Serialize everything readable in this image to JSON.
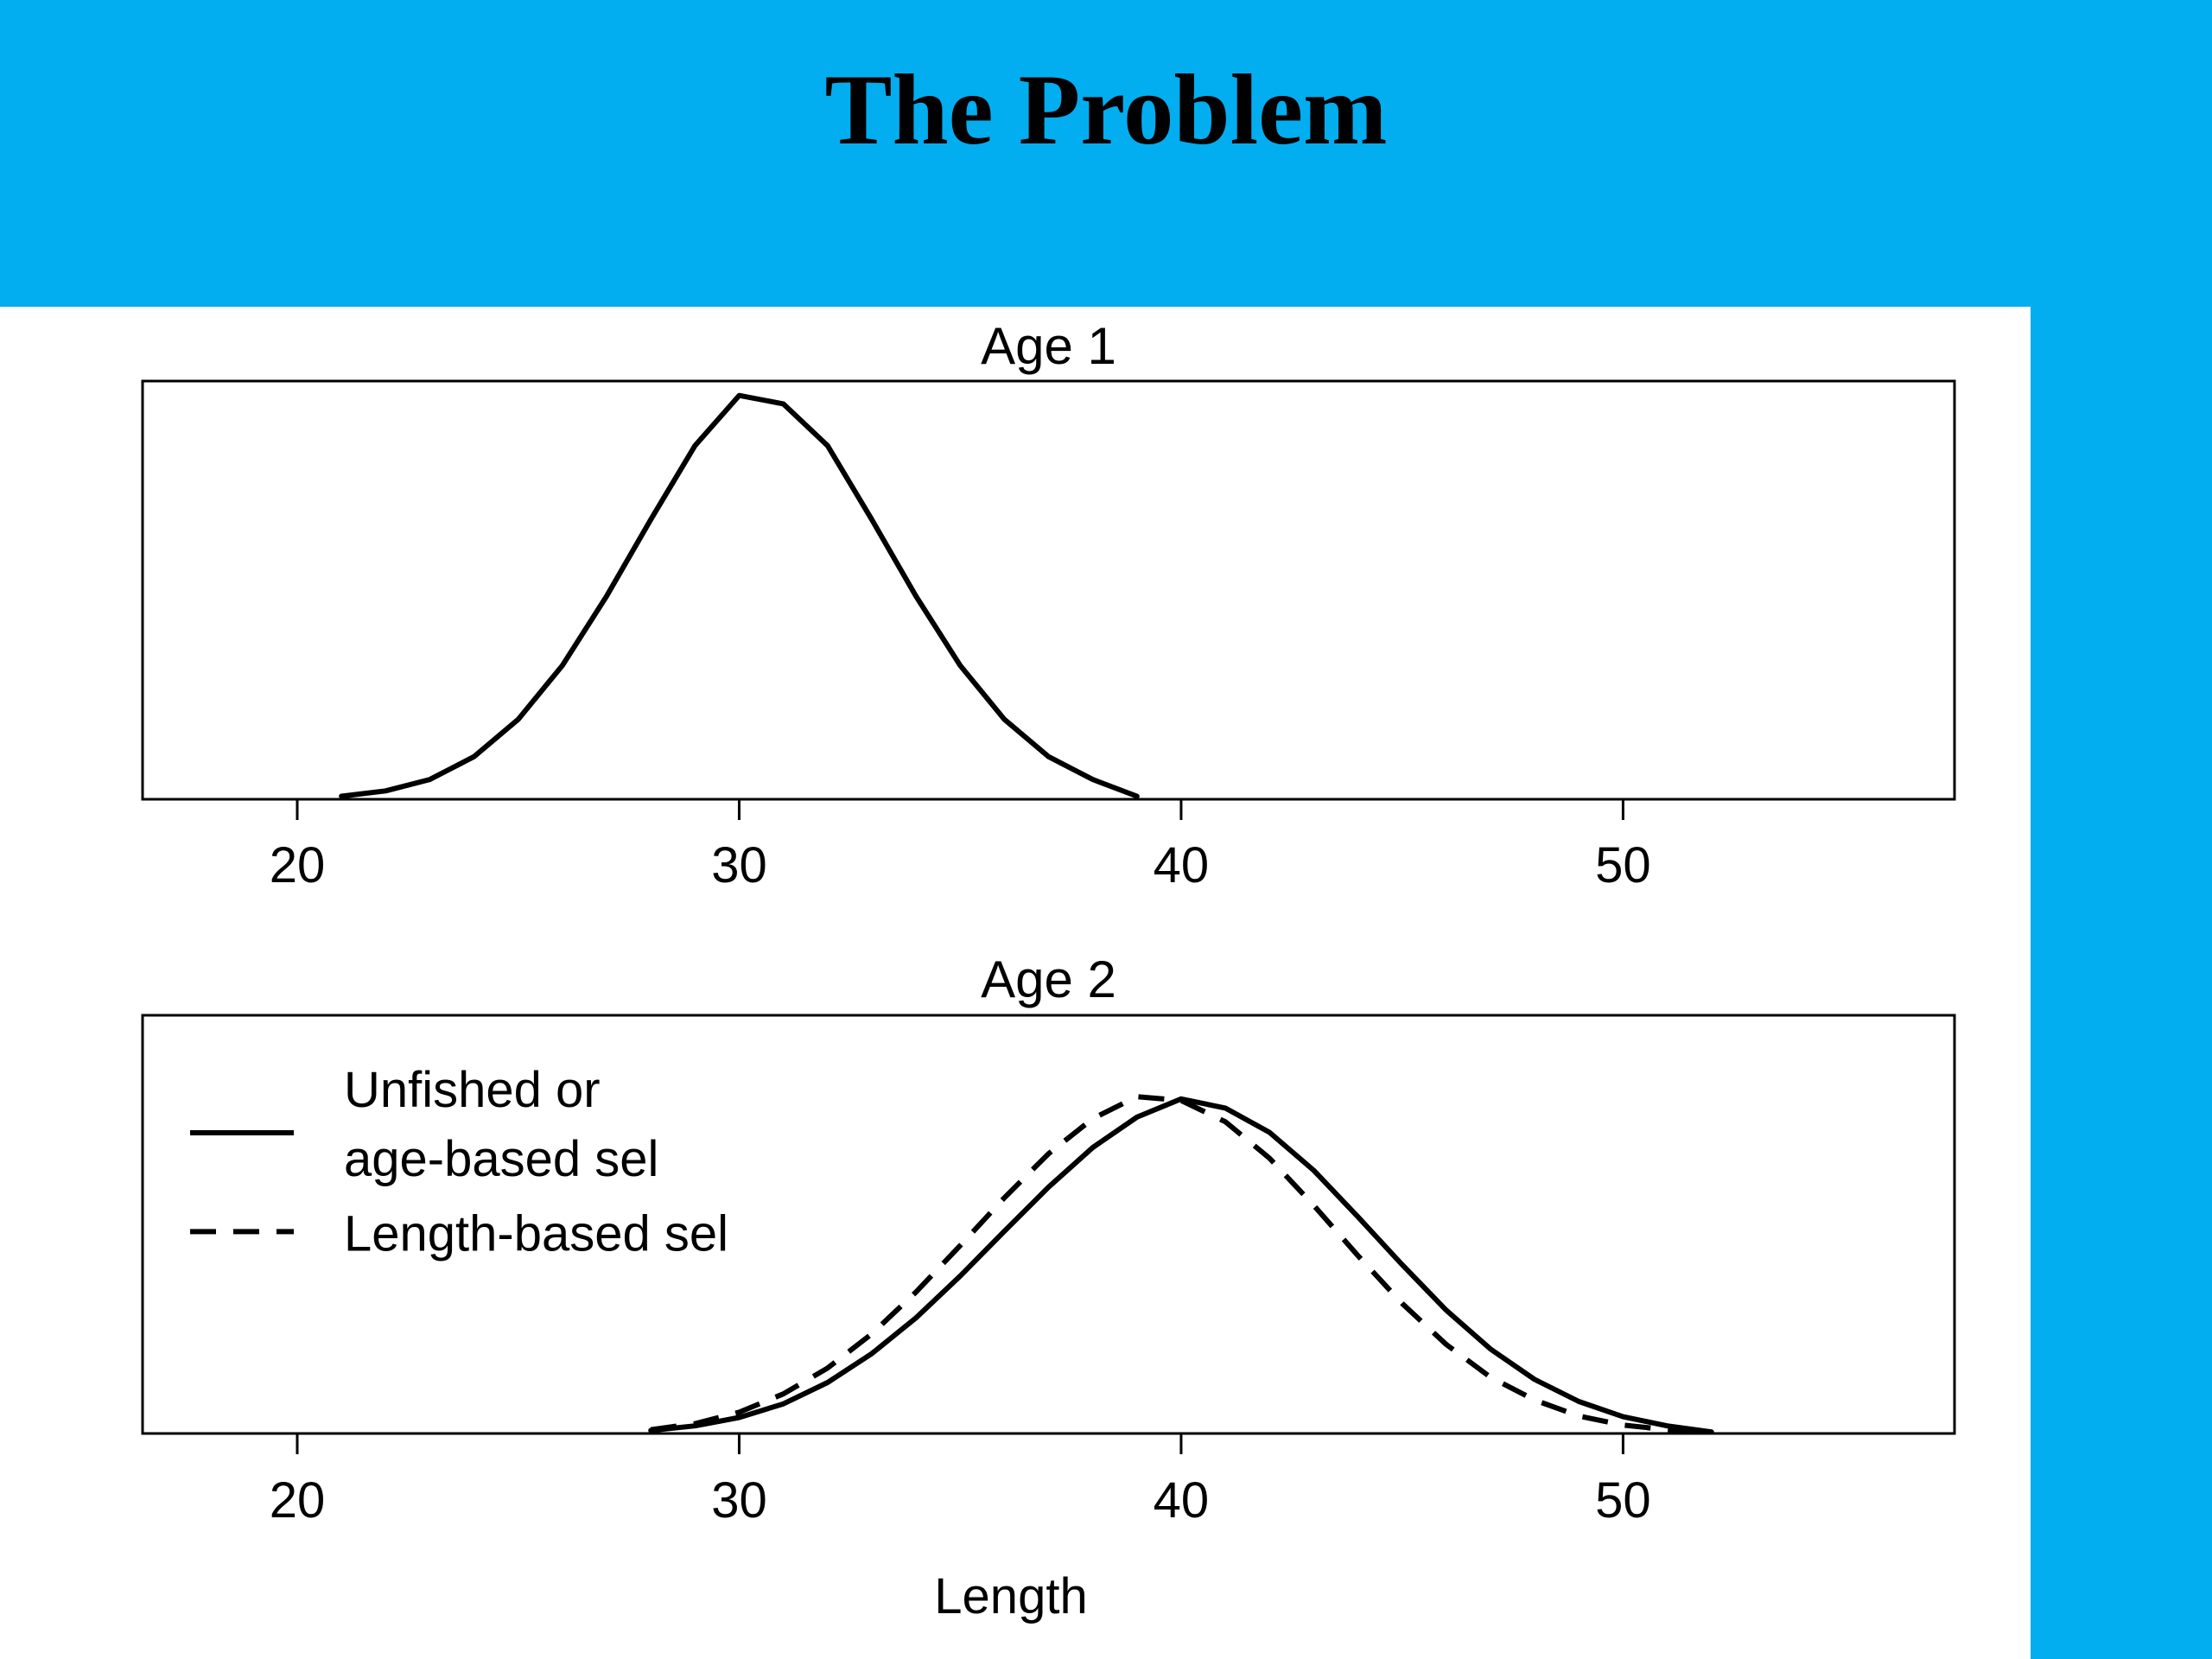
{
  "slide": {
    "title": "The Problem",
    "background_color": "#02AEEF",
    "panel_color": "#FFFFFF"
  },
  "chart_data": [
    {
      "type": "line",
      "title": "Age 1",
      "xlabel": "",
      "ylabel": "",
      "xlim": [
        16.5,
        57.5
      ],
      "x_ticks": [
        20,
        30,
        40,
        50
      ],
      "grid": false,
      "y_axis_shown": false,
      "series": [
        {
          "line_style": "solid",
          "x": [
            21,
            22,
            23,
            24,
            25,
            26,
            27,
            28,
            29,
            30,
            31,
            32,
            33,
            34,
            35,
            36,
            37,
            38,
            39
          ],
          "y": [
            0.004,
            0.011,
            0.026,
            0.056,
            0.105,
            0.176,
            0.267,
            0.368,
            0.465,
            0.531,
            0.52,
            0.465,
            0.368,
            0.267,
            0.176,
            0.105,
            0.056,
            0.026,
            0.004
          ]
        }
      ]
    },
    {
      "type": "line",
      "title": "Age 2",
      "xlabel": "Length",
      "ylabel": "",
      "xlim": [
        16.5,
        57.5
      ],
      "x_ticks": [
        20,
        30,
        40,
        50
      ],
      "grid": false,
      "y_axis_shown": false,
      "legend": {
        "position": "top-left",
        "entries": [
          {
            "label_lines": [
              "Unfished or",
              "age-based sel"
            ],
            "line_style": "solid"
          },
          {
            "label_lines": [
              "Length-based sel"
            ],
            "line_style": "dashed"
          }
        ]
      },
      "series": [
        {
          "line_style": "solid",
          "x": [
            28,
            29,
            30,
            31,
            32,
            33,
            34,
            35,
            36,
            37,
            38,
            39,
            40,
            41,
            42,
            43,
            44,
            45,
            46,
            47,
            48,
            49,
            50,
            51,
            52
          ],
          "y": [
            0.004,
            0.01,
            0.021,
            0.039,
            0.067,
            0.105,
            0.152,
            0.207,
            0.266,
            0.324,
            0.376,
            0.416,
            0.44,
            0.428,
            0.396,
            0.346,
            0.285,
            0.222,
            0.162,
            0.111,
            0.071,
            0.042,
            0.022,
            0.01,
            0.002
          ]
        },
        {
          "line_style": "dashed",
          "x": [
            28,
            29,
            30,
            31,
            32,
            33,
            34,
            35,
            36,
            37,
            38,
            39,
            40,
            41,
            42,
            43,
            44,
            45,
            46,
            47,
            48,
            49,
            50,
            51,
            52
          ],
          "y": [
            0.005,
            0.013,
            0.028,
            0.052,
            0.086,
            0.131,
            0.186,
            0.247,
            0.31,
            0.368,
            0.414,
            0.443,
            0.438,
            0.41,
            0.362,
            0.3,
            0.234,
            0.171,
            0.117,
            0.074,
            0.044,
            0.023,
            0.011,
            0.005,
            0.002
          ]
        }
      ]
    }
  ]
}
